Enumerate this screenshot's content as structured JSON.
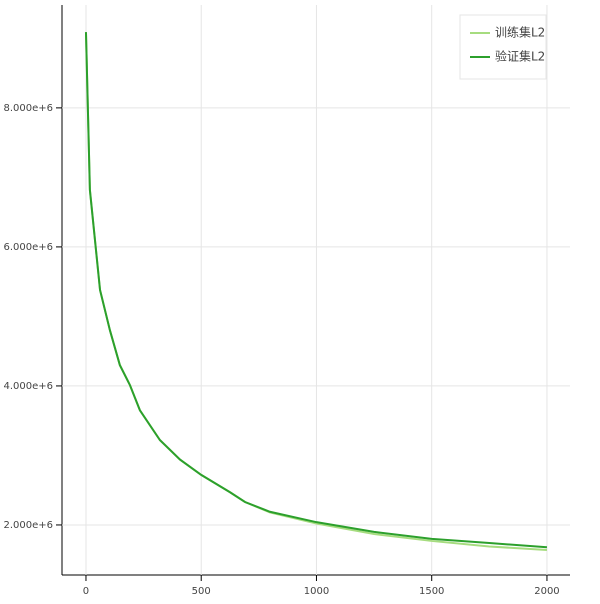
{
  "chart_data": {
    "type": "line",
    "x": [
      0,
      17,
      39,
      61,
      104,
      147,
      191,
      234,
      321,
      408,
      500,
      625,
      690,
      798,
      1000,
      1250,
      1500,
      1750,
      2000
    ],
    "series": [
      {
        "name": "训练集L2",
        "color": "#a6dc7f",
        "values": [
          9090000,
          6820000,
          6100000,
          5380000,
          4800000,
          4300000,
          4010000,
          3650000,
          3220000,
          2940000,
          2720000,
          2470000,
          2330000,
          2180000,
          2020000,
          1870000,
          1770000,
          1690000,
          1640000
        ]
      },
      {
        "name": "验证集L2",
        "color": "#2ca02c",
        "values": [
          9090000,
          6820000,
          6100000,
          5380000,
          4800000,
          4300000,
          4010000,
          3650000,
          3220000,
          2940000,
          2720000,
          2470000,
          2330000,
          2190000,
          2040000,
          1900000,
          1800000,
          1740000,
          1680000
        ]
      }
    ],
    "xlim": [
      -104,
      2100
    ],
    "ylim": [
      1280000,
      9480000
    ],
    "xticks": [
      0,
      500,
      1000,
      1500,
      2000
    ],
    "yticks": [
      {
        "value": 2000000,
        "label": "2.000e+6"
      },
      {
        "value": 4000000,
        "label": "4.000e+6"
      },
      {
        "value": 6000000,
        "label": "6.000e+6"
      },
      {
        "value": 8000000,
        "label": "8.000e+6"
      }
    ],
    "grid": true,
    "legend": "top-right"
  }
}
